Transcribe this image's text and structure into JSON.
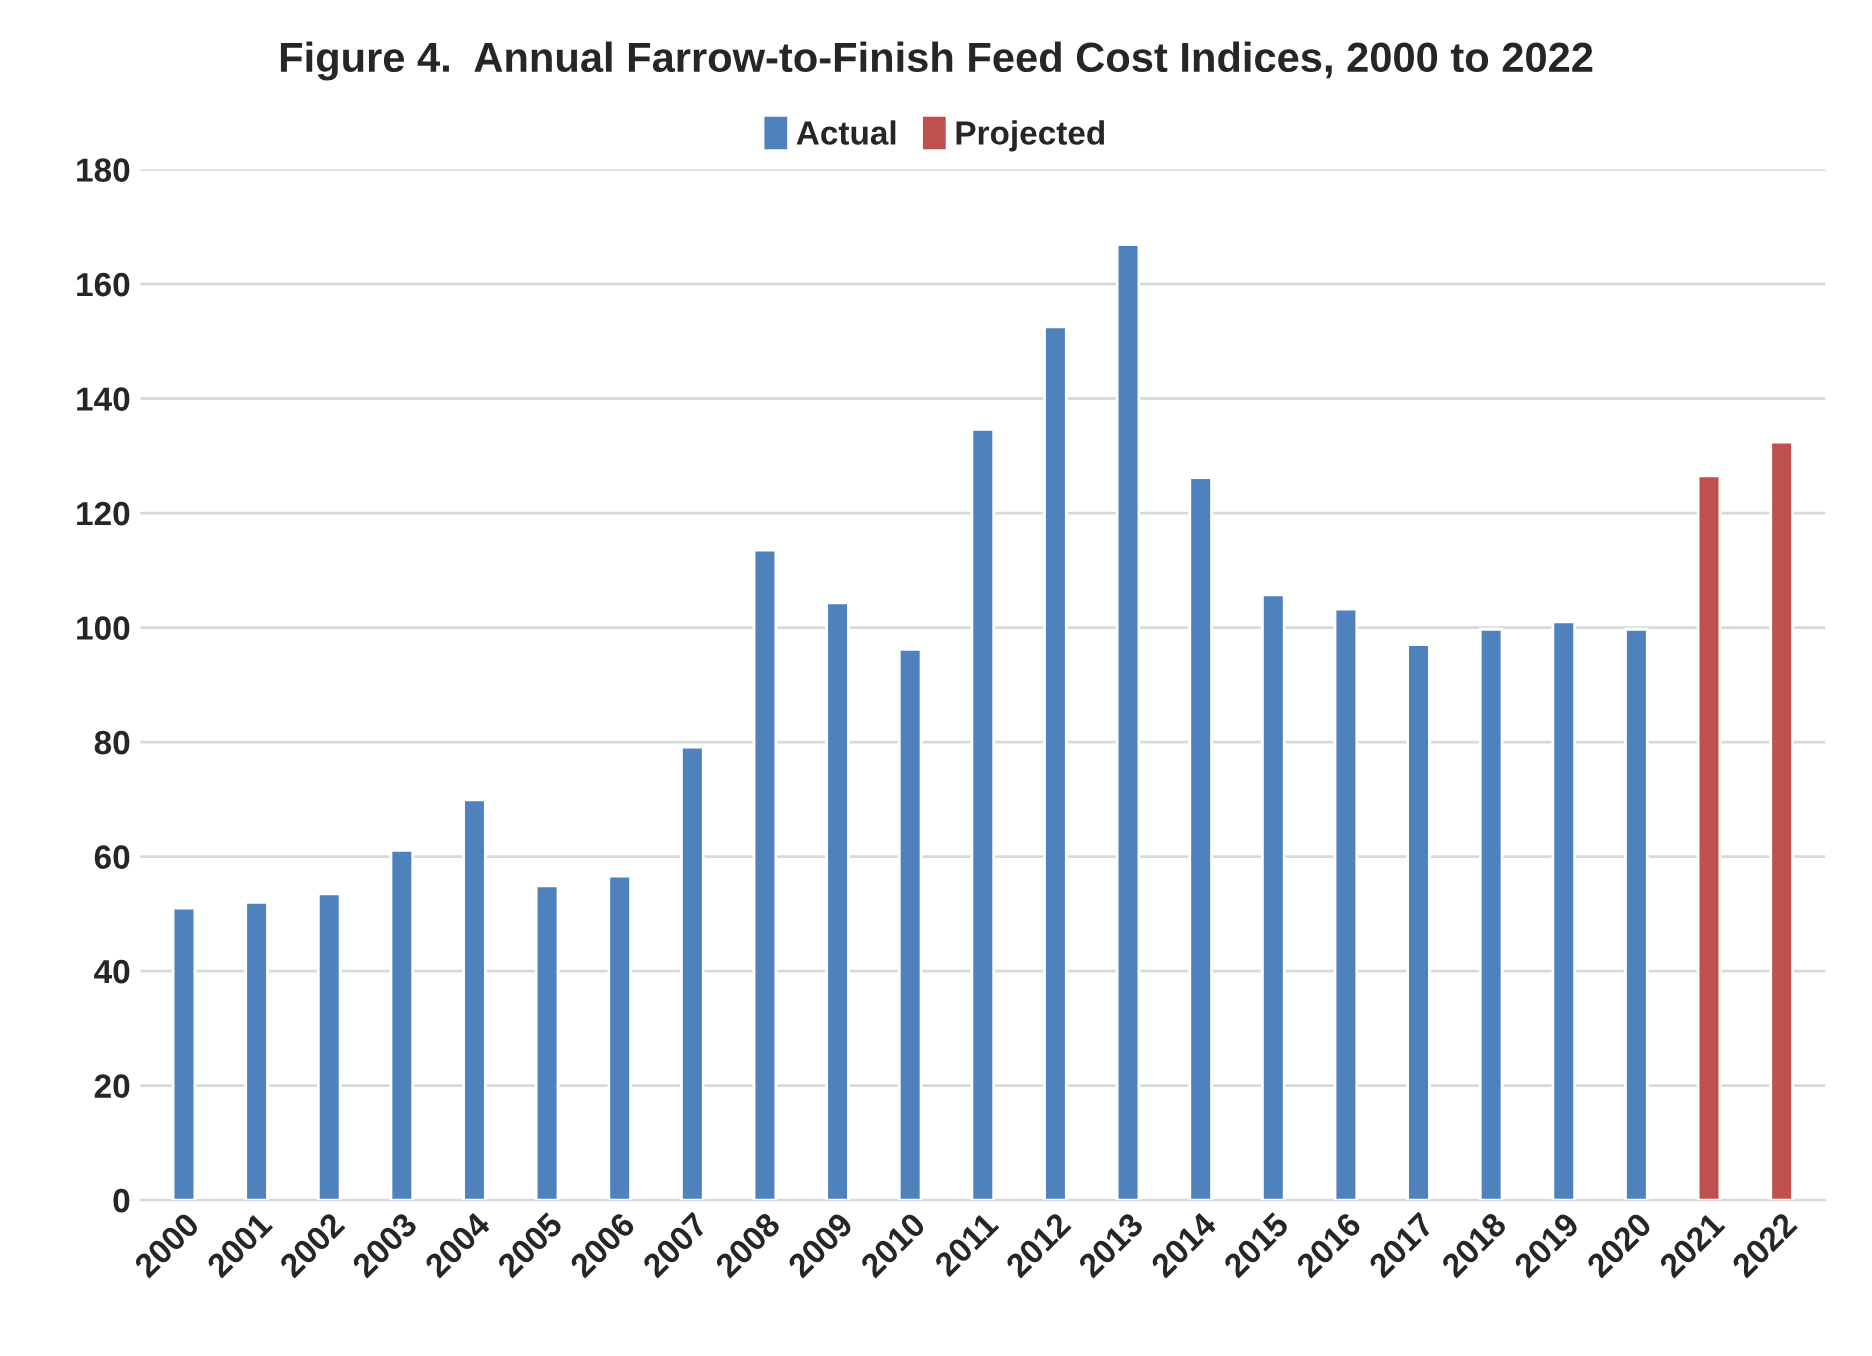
{
  "chart_data": {
    "type": "bar",
    "title": "Figure 4.  Annual Farrow-to-Finish Feed Cost Indices, 2000 to 2022",
    "categories": [
      "2000",
      "2001",
      "2002",
      "2003",
      "2004",
      "2005",
      "2006",
      "2007",
      "2008",
      "2009",
      "2010",
      "2011",
      "2012",
      "2013",
      "2014",
      "2015",
      "2016",
      "2017",
      "2018",
      "2019",
      "2020",
      "2021",
      "2022"
    ],
    "series": [
      {
        "name": "Actual",
        "color": "#4f81bd",
        "values": [
          51.0,
          52.0,
          53.5,
          61.1,
          69.9,
          54.9,
          56.6,
          79.1,
          113.5,
          104.3,
          96.2,
          134.6,
          152.5,
          166.9,
          126.2,
          105.7,
          103.2,
          97.0,
          99.7,
          101.0,
          99.7,
          null,
          null
        ]
      },
      {
        "name": "Projected",
        "color": "#c0504d",
        "values": [
          null,
          null,
          null,
          null,
          null,
          null,
          null,
          null,
          null,
          null,
          null,
          null,
          null,
          null,
          null,
          null,
          null,
          null,
          null,
          null,
          null,
          126.5,
          132.4
        ]
      }
    ],
    "ylim": [
      0,
      180
    ],
    "yticks": [
      0,
      20,
      40,
      60,
      80,
      100,
      120,
      140,
      160,
      180
    ],
    "grid": "y",
    "legend": "top"
  }
}
